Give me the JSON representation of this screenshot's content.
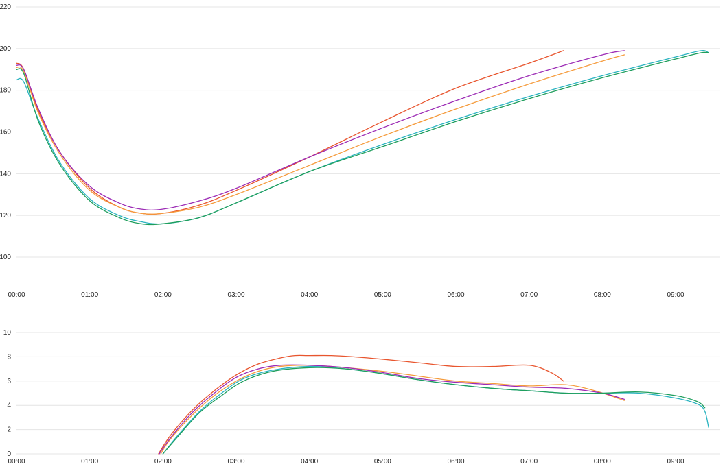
{
  "chart_data": [
    {
      "type": "line",
      "title": "",
      "xlabel": "",
      "ylabel": "",
      "xlim": [
        0,
        9.6
      ],
      "ylim": [
        100,
        220
      ],
      "yticks": [
        100,
        120,
        140,
        160,
        180,
        200,
        220
      ],
      "xticks": [
        0,
        1,
        2,
        3,
        4,
        5,
        6,
        7,
        8,
        9
      ],
      "xtick_labels": [
        "00:00",
        "01:00",
        "02:00",
        "03:00",
        "04:00",
        "05:00",
        "06:00",
        "07:00",
        "08:00",
        "09:00"
      ],
      "grid": true,
      "series": [
        {
          "color": "#e8552e",
          "x": [
            0,
            0.1,
            0.3,
            0.6,
            1.0,
            1.4,
            1.7,
            2.0,
            2.5,
            3.0,
            4.0,
            5.0,
            6.0,
            7.0,
            7.47
          ],
          "y": [
            193,
            190,
            170,
            150,
            133,
            124,
            121,
            121,
            125,
            132,
            148,
            165,
            181,
            193,
            199
          ]
        },
        {
          "color": "#f59b3c",
          "x": [
            0,
            0.1,
            0.3,
            0.6,
            1.0,
            1.4,
            1.7,
            2.0,
            2.5,
            3.0,
            4.0,
            5.0,
            6.0,
            7.0,
            8.0,
            8.3
          ],
          "y": [
            191,
            189,
            169,
            149,
            132,
            124,
            121,
            121,
            124,
            130,
            144,
            158,
            171,
            183,
            194,
            197
          ]
        },
        {
          "color": "#9c2bb5",
          "x": [
            0,
            0.1,
            0.3,
            0.6,
            1.0,
            1.4,
            1.7,
            2.0,
            2.5,
            3.0,
            4.0,
            5.0,
            6.0,
            7.0,
            8.0,
            8.3
          ],
          "y": [
            192,
            190,
            171,
            150,
            134,
            126,
            123,
            123,
            127,
            133,
            148,
            162,
            175,
            187,
            197,
            199
          ]
        },
        {
          "color": "#29b3c0",
          "x": [
            0,
            0.1,
            0.3,
            0.6,
            1.0,
            1.4,
            1.7,
            2.0,
            2.5,
            3.0,
            4.0,
            5.0,
            6.0,
            7.0,
            8.0,
            9.0,
            9.35,
            9.45
          ],
          "y": [
            185,
            184,
            166,
            145,
            128,
            120,
            117,
            116,
            119,
            126,
            141,
            154,
            166,
            177,
            187,
            196,
            199,
            198
          ]
        },
        {
          "color": "#1f9e5c",
          "x": [
            0,
            0.1,
            0.3,
            0.6,
            1.0,
            1.4,
            1.7,
            2.0,
            2.5,
            3.0,
            4.0,
            5.0,
            6.0,
            7.0,
            8.0,
            9.0,
            9.35,
            9.45
          ],
          "y": [
            190,
            188,
            165,
            144,
            127,
            119,
            116,
            116,
            119,
            126,
            141,
            153,
            165,
            176,
            186,
            195,
            198,
            198
          ]
        }
      ]
    },
    {
      "type": "line",
      "title": "",
      "xlabel": "",
      "ylabel": "",
      "xlim": [
        0,
        9.6
      ],
      "ylim": [
        0,
        10
      ],
      "yticks": [
        0,
        2,
        4,
        6,
        8,
        10
      ],
      "xticks": [
        0,
        1,
        2,
        3,
        4,
        5,
        6,
        7,
        8,
        9
      ],
      "xtick_labels": [
        "00:00",
        "01:00",
        "02:00",
        "03:00",
        "04:00",
        "05:00",
        "06:00",
        "07:00",
        "08:00",
        "09:00"
      ],
      "grid": true,
      "series": [
        {
          "color": "#e8552e",
          "x": [
            1.94,
            2.1,
            2.4,
            2.7,
            3.0,
            3.3,
            3.6,
            3.8,
            4.0,
            4.3,
            4.6,
            5.0,
            5.5,
            6.0,
            6.5,
            7.0,
            7.3,
            7.47
          ],
          "y": [
            0,
            1.5,
            3.6,
            5.2,
            6.5,
            7.4,
            7.9,
            8.1,
            8.1,
            8.1,
            8.0,
            7.8,
            7.5,
            7.2,
            7.2,
            7.3,
            6.7,
            6.0
          ]
        },
        {
          "color": "#f59b3c",
          "x": [
            1.97,
            2.1,
            2.4,
            2.7,
            3.0,
            3.3,
            3.6,
            4.0,
            4.5,
            5.0,
            5.5,
            6.0,
            6.5,
            7.0,
            7.5,
            7.9,
            8.3
          ],
          "y": [
            0,
            1.2,
            3.2,
            4.8,
            6.0,
            6.8,
            7.2,
            7.3,
            7.1,
            6.8,
            6.4,
            6.0,
            5.8,
            5.6,
            5.7,
            5.2,
            4.4
          ]
        },
        {
          "color": "#9c2bb5",
          "x": [
            1.95,
            2.1,
            2.4,
            2.7,
            3.0,
            3.3,
            3.6,
            4.0,
            4.5,
            5.0,
            5.5,
            6.0,
            6.5,
            7.0,
            7.5,
            8.0,
            8.3
          ],
          "y": [
            0,
            1.3,
            3.4,
            5.0,
            6.3,
            7.0,
            7.3,
            7.3,
            7.1,
            6.7,
            6.2,
            5.9,
            5.7,
            5.5,
            5.4,
            5.0,
            4.5
          ]
        },
        {
          "color": "#29b3c0",
          "x": [
            2.0,
            2.2,
            2.5,
            2.8,
            3.1,
            3.5,
            4.0,
            4.5,
            5.0,
            5.5,
            6.0,
            6.5,
            7.0,
            7.5,
            8.0,
            8.5,
            9.0,
            9.3,
            9.4,
            9.45
          ],
          "y": [
            0,
            1.5,
            3.5,
            5.0,
            6.2,
            6.9,
            7.2,
            7.0,
            6.6,
            6.1,
            5.7,
            5.4,
            5.2,
            5.0,
            5.0,
            5.0,
            4.6,
            4.1,
            3.5,
            2.2
          ]
        },
        {
          "color": "#1f9e5c",
          "x": [
            2.0,
            2.2,
            2.5,
            2.8,
            3.1,
            3.5,
            4.0,
            4.5,
            5.0,
            5.5,
            6.0,
            6.5,
            7.0,
            7.5,
            8.0,
            8.5,
            9.0,
            9.3,
            9.4
          ],
          "y": [
            0,
            1.4,
            3.4,
            4.8,
            6.0,
            6.8,
            7.1,
            7.0,
            6.6,
            6.1,
            5.7,
            5.4,
            5.2,
            5.0,
            5.0,
            5.1,
            4.8,
            4.3,
            3.8
          ]
        }
      ]
    }
  ]
}
